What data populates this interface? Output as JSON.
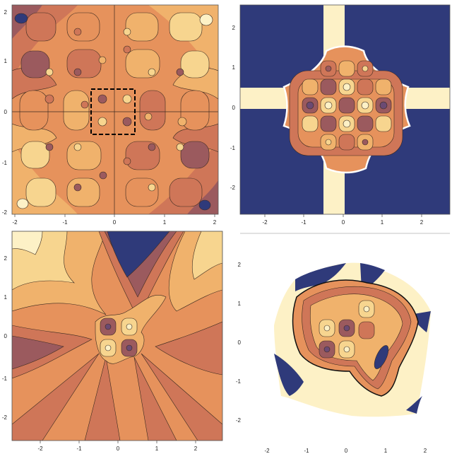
{
  "colors": {
    "navy": "#2f3a7a",
    "cream": "#fdf1c6",
    "light": "#f7d58f",
    "mid_light": "#f0b26c",
    "mid": "#e6925c",
    "mid_dark": "#cf7658",
    "dark": "#9b5a5e",
    "purple": "#6b4a73"
  },
  "chart_data": [
    {
      "id": "top-left",
      "type": "heatmap",
      "subtype": "contour",
      "xlim": [
        -2,
        2
      ],
      "ylim": [
        -2,
        2
      ],
      "xticks": [
        "-2",
        "-1",
        "0",
        "1",
        "2"
      ],
      "yticks": [
        "2",
        "1",
        "0",
        "-1",
        "-2"
      ],
      "grid": false,
      "crosshair_at_origin": true,
      "dashed_box": {
        "x": [
          -0.3,
          0.3
        ],
        "y": [
          -0.3,
          0.3
        ]
      }
    },
    {
      "id": "top-right",
      "type": "heatmap",
      "subtype": "contour",
      "xlim": [
        -2.7,
        2.7
      ],
      "ylim": [
        -2.7,
        2.7
      ],
      "xticks": [
        "-2",
        "-1",
        "0",
        "1",
        "2"
      ],
      "yticks": [
        "2",
        "1",
        "0",
        "-1",
        "-2"
      ],
      "grid": false
    },
    {
      "id": "bottom-left",
      "type": "heatmap",
      "subtype": "contour",
      "xlim": [
        -2.7,
        2.7
      ],
      "ylim": [
        -2.7,
        2.7
      ],
      "xticks": [
        "-2",
        "-1",
        "0",
        "1",
        "2"
      ],
      "yticks": [
        "2",
        "1",
        "0",
        "-1",
        "-2"
      ],
      "grid": false
    },
    {
      "id": "bottom-right",
      "type": "heatmap",
      "subtype": "contour",
      "xlim": [
        -2.7,
        2.7
      ],
      "ylim": [
        -2.7,
        2.7
      ],
      "xticks": [
        "-2",
        "-1",
        "0",
        "1",
        "2"
      ],
      "yticks": [
        "2",
        "1",
        "0",
        "-1",
        "-2"
      ],
      "grid": false
    }
  ]
}
